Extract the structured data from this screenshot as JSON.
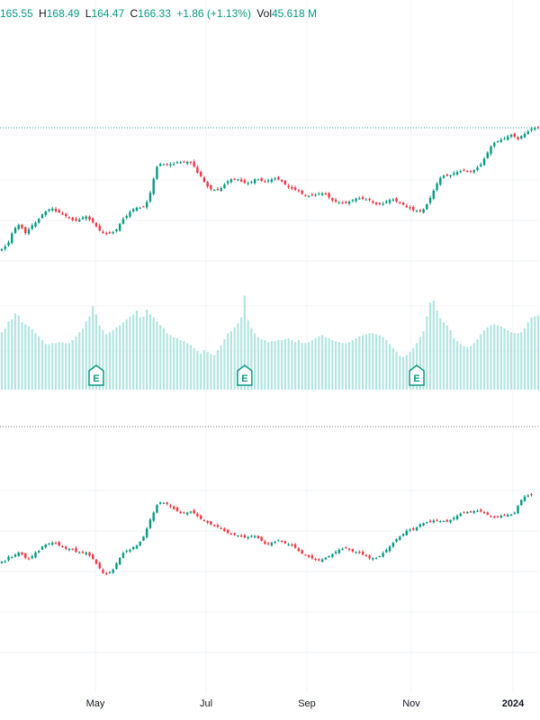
{
  "legend": {
    "open": "165.55",
    "high_label": "H",
    "high": "168.49",
    "low_label": "L",
    "low": "164.47",
    "close_label": "C",
    "close": "166.33",
    "change": "+1.86 (+1.13%)",
    "vol_label": "Vol",
    "volume": "45.618 M"
  },
  "colors": {
    "up": "#089981",
    "down": "#f23645",
    "volume": "#b3e5e0",
    "grid": "#f0f3fa",
    "dotted": "#26a69a",
    "earnings": "#089981"
  },
  "earnings_marker": "E",
  "chart_data": {
    "type": "candlestick",
    "x_ticks": [
      "May",
      "Jul",
      "Sep",
      "Nov",
      "2024"
    ],
    "last_price_line": 167.3,
    "upper_price_range": [
      138,
      172
    ],
    "lower_panel_range": [
      0,
      100
    ],
    "series": [
      {
        "name": "main",
        "closes": [
          143.8,
          144.3,
          145.1,
          146.8,
          147.9,
          148.5,
          147.8,
          146.9,
          147.6,
          148.4,
          148.9,
          149.6,
          150.5,
          151.1,
          151.5,
          151.6,
          151.1,
          150.9,
          150.5,
          150.2,
          149.9,
          149.4,
          149.3,
          149.5,
          149.9,
          150.1,
          149.5,
          149.0,
          148.2,
          147.4,
          146.9,
          146.8,
          147.0,
          147.1,
          147.6,
          148.7,
          149.6,
          150.2,
          151.0,
          151.5,
          151.8,
          151.8,
          152.0,
          152.9,
          154.7,
          157.4,
          159.7,
          160.3,
          160.2,
          160.2,
          160.2,
          160.3,
          160.6,
          160.6,
          160.6,
          160.7,
          160.5,
          159.8,
          158.6,
          157.9,
          156.8,
          155.9,
          155.4,
          155.3,
          155.3,
          155.6,
          156.3,
          156.9,
          157.3,
          157.4,
          157.3,
          156.9,
          156.6,
          156.6,
          156.8,
          157.3,
          157.3,
          157.0,
          156.8,
          157.1,
          157.3,
          157.5,
          157.3,
          156.9,
          156.3,
          155.8,
          155.5,
          155.3,
          155.0,
          154.5,
          154.1,
          154.1,
          154.3,
          154.3,
          154.5,
          154.6,
          154.4,
          153.8,
          153.2,
          153.0,
          152.8,
          152.7,
          152.7,
          153.0,
          153.3,
          153.6,
          153.6,
          153.5,
          153.4,
          153.3,
          152.8,
          152.5,
          152.5,
          152.6,
          153.0,
          153.3,
          153.4,
          153.0,
          152.7,
          152.4,
          151.9,
          151.7,
          151.3,
          151.2,
          151.1,
          151.5,
          152.5,
          153.7,
          155.1,
          156.5,
          157.6,
          158.0,
          158.0,
          158.1,
          158.5,
          158.7,
          158.9,
          159.0,
          158.8,
          158.9,
          159.1,
          159.6,
          160.2,
          161.3,
          162.5,
          163.7,
          164.4,
          164.7,
          165.0,
          165.2,
          165.6,
          165.9,
          165.6,
          165.1,
          165.7,
          166.1,
          166.6,
          167.1,
          167.3,
          167.3
        ]
      },
      {
        "name": "lower",
        "values": [
          47.8,
          47.8,
          48.7,
          48.6,
          49.1,
          49.5,
          49.1,
          48.5,
          48.3,
          48.8,
          49.5,
          49.8,
          50.6,
          51.0,
          51.2,
          51.3,
          51.2,
          50.8,
          50.5,
          50.2,
          50.2,
          50.1,
          49.6,
          49.5,
          49.4,
          49.5,
          48.9,
          48.3,
          47.4,
          46.5,
          45.6,
          45.5,
          45.8,
          46.3,
          47.5,
          48.5,
          49.4,
          49.8,
          50.0,
          50.5,
          50.8,
          51.5,
          52.5,
          54.0,
          55.7,
          57.0,
          58.4,
          58.9,
          58.8,
          58.6,
          58.1,
          57.7,
          57.3,
          56.9,
          56.9,
          57.0,
          57.2,
          56.9,
          56.3,
          55.8,
          55.4,
          55.1,
          54.8,
          54.5,
          54.3,
          54.0,
          53.5,
          53.2,
          53.0,
          52.8,
          52.7,
          52.5,
          52.3,
          52.4,
          52.6,
          52.6,
          52.2,
          51.7,
          51.1,
          51.1,
          51.3,
          51.5,
          51.8,
          51.5,
          51.2,
          51.0,
          50.8,
          50.4,
          49.8,
          49.3,
          49.0,
          48.7,
          48.4,
          48.1,
          48.0,
          48.2,
          48.5,
          48.8,
          49.2,
          49.6,
          50.0,
          50.2,
          50.3,
          50.0,
          49.7,
          49.6,
          49.4,
          49.1,
          48.8,
          48.4,
          48.4,
          48.5,
          48.8,
          49.4,
          50.0,
          50.6,
          51.3,
          52.0,
          52.5,
          53.0,
          53.6,
          53.8,
          53.8,
          54.2,
          54.8,
          55.0,
          55.2,
          55.3,
          55.5,
          55.5,
          55.4,
          55.4,
          55.3,
          55.6,
          56.0,
          56.4,
          56.8,
          57.0,
          57.1,
          57.2,
          57.3,
          57.3,
          57.2,
          56.9,
          56.6,
          56.3,
          56.1,
          56.2,
          56.4,
          56.5,
          56.6,
          56.6,
          57.0,
          58.3,
          59.4,
          60.0,
          60.2,
          60.3
        ]
      },
      {
        "name": "volume",
        "values": [
          0.58,
          0.62,
          0.69,
          0.71,
          0.77,
          0.75,
          0.68,
          0.66,
          0.64,
          0.61,
          0.57,
          0.54,
          0.5,
          0.46,
          0.46,
          0.47,
          0.47,
          0.48,
          0.48,
          0.47,
          0.47,
          0.5,
          0.54,
          0.58,
          0.62,
          0.69,
          0.74,
          0.84,
          0.76,
          0.65,
          0.6,
          0.56,
          0.58,
          0.6,
          0.63,
          0.65,
          0.68,
          0.71,
          0.74,
          0.76,
          0.8,
          0.73,
          0.74,
          0.81,
          0.76,
          0.73,
          0.69,
          0.65,
          0.62,
          0.57,
          0.55,
          0.53,
          0.52,
          0.5,
          0.49,
          0.47,
          0.45,
          0.42,
          0.39,
          0.36,
          0.4,
          0.38,
          0.36,
          0.35,
          0.4,
          0.45,
          0.51,
          0.57,
          0.59,
          0.63,
          0.67,
          0.73,
          0.95,
          0.7,
          0.62,
          0.57,
          0.53,
          0.51,
          0.5,
          0.48,
          0.49,
          0.49,
          0.5,
          0.5,
          0.51,
          0.52,
          0.5,
          0.48,
          0.5,
          0.47,
          0.47,
          0.48,
          0.5,
          0.52,
          0.54,
          0.55,
          0.53,
          0.52,
          0.5,
          0.49,
          0.48,
          0.47,
          0.47,
          0.48,
          0.5,
          0.52,
          0.54,
          0.55,
          0.56,
          0.57,
          0.57,
          0.56,
          0.55,
          0.53,
          0.5,
          0.46,
          0.42,
          0.38,
          0.34,
          0.33,
          0.35,
          0.38,
          0.42,
          0.47,
          0.53,
          0.59,
          0.74,
          0.88,
          0.9,
          0.8,
          0.72,
          0.68,
          0.65,
          0.6,
          0.52,
          0.49,
          0.46,
          0.44,
          0.43,
          0.44,
          0.47,
          0.51,
          0.56,
          0.6,
          0.63,
          0.65,
          0.66,
          0.65,
          0.64,
          0.62,
          0.6,
          0.58,
          0.57,
          0.57,
          0.58,
          0.62,
          0.68,
          0.73,
          0.74,
          0.75,
          0.81
        ]
      }
    ],
    "earnings": [
      {
        "label": "E"
      },
      {
        "label": "E"
      },
      {
        "label": "E"
      }
    ]
  }
}
